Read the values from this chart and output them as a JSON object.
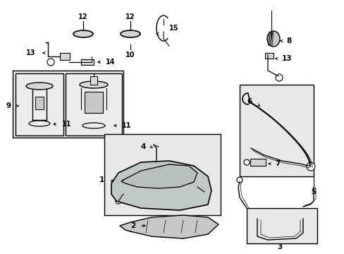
{
  "bg_color": "#ffffff",
  "line_color": "#000000",
  "box_fill": "#e8e8e8",
  "fig_width": 4.89,
  "fig_height": 3.6,
  "dpi": 100,
  "parts": [
    1,
    2,
    3,
    4,
    5,
    6,
    7,
    8,
    9,
    10,
    11,
    12,
    13,
    14,
    15
  ]
}
